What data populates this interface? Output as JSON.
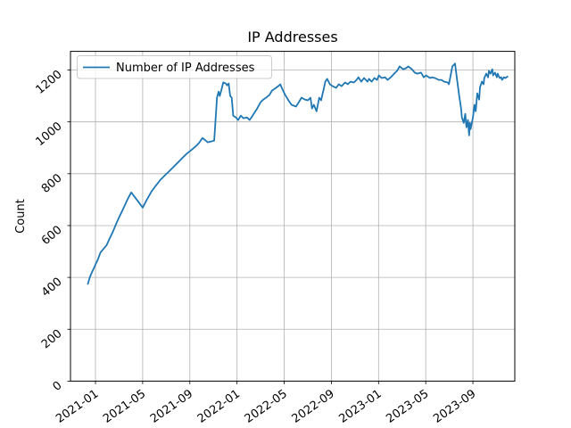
{
  "chart_data": {
    "type": "line",
    "title": "IP Addresses",
    "xlabel": "",
    "ylabel": "Count",
    "grid": true,
    "grid_color": "#b0b0b0",
    "background_color": "#ffffff",
    "spine_color": "#000000",
    "legend": {
      "position": "upper left",
      "border_color": "#cccccc",
      "entries": [
        {
          "label": "Number of IP Addresses",
          "color": "#1f77b4"
        }
      ]
    },
    "x_tick_labels": [
      "2021-01",
      "2021-05",
      "2021-09",
      "2022-01",
      "2022-05",
      "2022-09",
      "2023-01",
      "2023-05",
      "2023-09"
    ],
    "x_tick_rotation": -35,
    "y_ticks": [
      0,
      200,
      400,
      600,
      800,
      1000,
      1200
    ],
    "y_tick_rotation": -40,
    "xlim_months_since_2020_12": [
      -1.12,
      36.55
    ],
    "ylim": [
      0,
      1272
    ],
    "series": [
      {
        "name": "Number of IP Addresses",
        "color": "#1f77b4",
        "line_width": 1.8,
        "points": [
          [
            "2020-12-12",
            375
          ],
          [
            "2020-12-17",
            400
          ],
          [
            "2020-12-22",
            418
          ],
          [
            "2020-12-28",
            436
          ],
          [
            "2021-01-01",
            450
          ],
          [
            "2021-01-07",
            468
          ],
          [
            "2021-01-14",
            496
          ],
          [
            "2021-01-22",
            510
          ],
          [
            "2021-01-30",
            524
          ],
          [
            "2021-02-06",
            548
          ],
          [
            "2021-02-14",
            575
          ],
          [
            "2021-02-23",
            610
          ],
          [
            "2021-03-02",
            635
          ],
          [
            "2021-03-09",
            656
          ],
          [
            "2021-03-16",
            678
          ],
          [
            "2021-03-22",
            697
          ],
          [
            "2021-03-27",
            712
          ],
          [
            "2021-04-02",
            728
          ],
          [
            "2021-04-12",
            708
          ],
          [
            "2021-04-21",
            690
          ],
          [
            "2021-05-01",
            669
          ],
          [
            "2021-05-12",
            700
          ],
          [
            "2021-05-24",
            731
          ],
          [
            "2021-06-05",
            755
          ],
          [
            "2021-06-16",
            776
          ],
          [
            "2021-06-27",
            793
          ],
          [
            "2021-07-09",
            810
          ],
          [
            "2021-07-21",
            828
          ],
          [
            "2021-08-02",
            845
          ],
          [
            "2021-08-13",
            862
          ],
          [
            "2021-08-25",
            879
          ],
          [
            "2021-09-06",
            893
          ],
          [
            "2021-09-17",
            907
          ],
          [
            "2021-09-25",
            920
          ],
          [
            "2021-10-03",
            938
          ],
          [
            "2021-10-10",
            930
          ],
          [
            "2021-10-17",
            921
          ],
          [
            "2021-10-25",
            924
          ],
          [
            "2021-11-03",
            928
          ],
          [
            "2021-11-10",
            1093
          ],
          [
            "2021-11-14",
            1117
          ],
          [
            "2021-11-17",
            1100
          ],
          [
            "2021-11-21",
            1121
          ],
          [
            "2021-11-26",
            1152
          ],
          [
            "2021-12-02",
            1148
          ],
          [
            "2021-12-06",
            1141
          ],
          [
            "2021-12-10",
            1148
          ],
          [
            "2021-12-14",
            1100
          ],
          [
            "2021-12-18",
            1093
          ],
          [
            "2021-12-22",
            1024
          ],
          [
            "2021-12-29",
            1017
          ],
          [
            "2022-01-04",
            1007
          ],
          [
            "2022-01-11",
            1024
          ],
          [
            "2022-01-18",
            1014
          ],
          [
            "2022-01-27",
            1017
          ],
          [
            "2022-02-03",
            1007
          ],
          [
            "2022-02-10",
            1024
          ],
          [
            "2022-02-21",
            1052
          ],
          [
            "2022-03-01",
            1076
          ],
          [
            "2022-03-08",
            1086
          ],
          [
            "2022-03-15",
            1093
          ],
          [
            "2022-03-24",
            1103
          ],
          [
            "2022-03-31",
            1121
          ],
          [
            "2022-04-07",
            1128
          ],
          [
            "2022-04-16",
            1138
          ],
          [
            "2022-04-21",
            1145
          ],
          [
            "2022-04-28",
            1121
          ],
          [
            "2022-05-04",
            1103
          ],
          [
            "2022-05-11",
            1086
          ],
          [
            "2022-05-20",
            1066
          ],
          [
            "2022-06-01",
            1059
          ],
          [
            "2022-06-08",
            1076
          ],
          [
            "2022-06-15",
            1093
          ],
          [
            "2022-06-24",
            1086
          ],
          [
            "2022-07-01",
            1083
          ],
          [
            "2022-07-08",
            1093
          ],
          [
            "2022-07-12",
            1052
          ],
          [
            "2022-07-17",
            1066
          ],
          [
            "2022-07-24",
            1041
          ],
          [
            "2022-07-31",
            1093
          ],
          [
            "2022-08-05",
            1083
          ],
          [
            "2022-08-12",
            1128
          ],
          [
            "2022-08-16",
            1155
          ],
          [
            "2022-08-21",
            1166
          ],
          [
            "2022-08-28",
            1145
          ],
          [
            "2022-09-04",
            1138
          ],
          [
            "2022-09-13",
            1131
          ],
          [
            "2022-09-20",
            1145
          ],
          [
            "2022-09-27",
            1138
          ],
          [
            "2022-10-06",
            1152
          ],
          [
            "2022-10-13",
            1145
          ],
          [
            "2022-10-20",
            1155
          ],
          [
            "2022-10-29",
            1152
          ],
          [
            "2022-11-05",
            1162
          ],
          [
            "2022-11-10",
            1172
          ],
          [
            "2022-11-17",
            1155
          ],
          [
            "2022-11-24",
            1169
          ],
          [
            "2022-12-03",
            1155
          ],
          [
            "2022-12-07",
            1166
          ],
          [
            "2022-12-14",
            1155
          ],
          [
            "2022-12-21",
            1169
          ],
          [
            "2022-12-28",
            1162
          ],
          [
            "2023-01-02",
            1179
          ],
          [
            "2023-01-09",
            1169
          ],
          [
            "2023-01-18",
            1172
          ],
          [
            "2023-01-25",
            1162
          ],
          [
            "2023-02-02",
            1172
          ],
          [
            "2023-02-10",
            1186
          ],
          [
            "2023-02-17",
            1197
          ],
          [
            "2023-02-23",
            1214
          ],
          [
            "2023-03-04",
            1203
          ],
          [
            "2023-03-11",
            1207
          ],
          [
            "2023-03-17",
            1214
          ],
          [
            "2023-03-27",
            1203
          ],
          [
            "2023-04-03",
            1190
          ],
          [
            "2023-04-10",
            1186
          ],
          [
            "2023-04-19",
            1190
          ],
          [
            "2023-04-26",
            1172
          ],
          [
            "2023-05-02",
            1179
          ],
          [
            "2023-05-12",
            1169
          ],
          [
            "2023-05-18",
            1172
          ],
          [
            "2023-05-25",
            1169
          ],
          [
            "2023-06-04",
            1162
          ],
          [
            "2023-06-11",
            1162
          ],
          [
            "2023-06-18",
            1155
          ],
          [
            "2023-06-27",
            1152
          ],
          [
            "2023-06-30",
            1145
          ],
          [
            "2023-07-09",
            1214
          ],
          [
            "2023-07-16",
            1225
          ],
          [
            "2023-07-22",
            1155
          ],
          [
            "2023-07-27",
            1100
          ],
          [
            "2023-08-01",
            1052
          ],
          [
            "2023-08-03",
            1017
          ],
          [
            "2023-08-08",
            996
          ],
          [
            "2023-08-12",
            1031
          ],
          [
            "2023-08-15",
            979
          ],
          [
            "2023-08-19",
            1007
          ],
          [
            "2023-08-22",
            948
          ],
          [
            "2023-08-24",
            996
          ],
          [
            "2023-08-26",
            972
          ],
          [
            "2023-09-01",
            1017
          ],
          [
            "2023-09-05",
            1066
          ],
          [
            "2023-09-08",
            1041
          ],
          [
            "2023-09-12",
            1110
          ],
          [
            "2023-09-17",
            1086
          ],
          [
            "2023-09-19",
            1134
          ],
          [
            "2023-09-24",
            1155
          ],
          [
            "2023-09-28",
            1145
          ],
          [
            "2023-09-30",
            1169
          ],
          [
            "2023-10-05",
            1186
          ],
          [
            "2023-10-10",
            1172
          ],
          [
            "2023-10-12",
            1197
          ],
          [
            "2023-10-16",
            1186
          ],
          [
            "2023-10-21",
            1203
          ],
          [
            "2023-10-23",
            1179
          ],
          [
            "2023-10-28",
            1190
          ],
          [
            "2023-11-02",
            1172
          ],
          [
            "2023-11-04",
            1186
          ],
          [
            "2023-11-09",
            1169
          ],
          [
            "2023-11-13",
            1172
          ],
          [
            "2023-11-15",
            1162
          ],
          [
            "2023-11-20",
            1172
          ],
          [
            "2023-11-24",
            1169
          ],
          [
            "2023-11-29",
            1175
          ]
        ]
      }
    ]
  }
}
